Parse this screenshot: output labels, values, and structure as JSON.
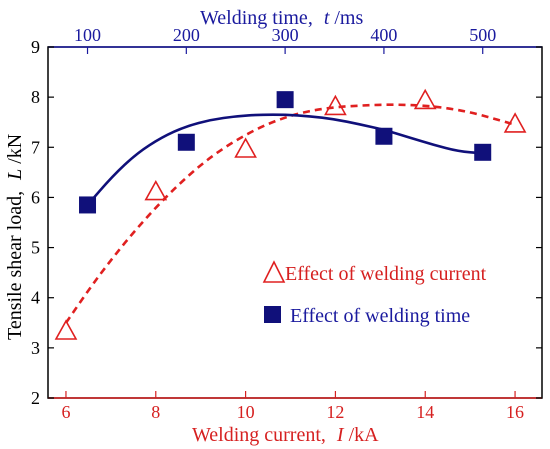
{
  "chart_data": {
    "type": "scatter",
    "x_bottom": {
      "label_prefix": "Welding current,",
      "label_var": "I",
      "label_unit": "/kA",
      "ticks": [
        6,
        8,
        10,
        12,
        14,
        16
      ],
      "range": [
        5.6,
        16.6
      ]
    },
    "x_top": {
      "label_prefix": "Welding time,",
      "label_var": "t",
      "label_unit": "/ms",
      "ticks": [
        100,
        200,
        300,
        400,
        500
      ],
      "range": [
        60,
        560
      ]
    },
    "y": {
      "label_prefix": "Tensile shear load,",
      "label_var": "L",
      "label_unit": "/kN",
      "ticks": [
        2,
        3,
        4,
        5,
        6,
        7,
        8,
        9
      ],
      "range": [
        2,
        9
      ]
    },
    "series": [
      {
        "name": "Effect of welding current",
        "axis": "bottom",
        "marker": "triangle",
        "color": "#e02020",
        "line_style": "dashed",
        "x": [
          6.0,
          8.0,
          10.0,
          12.0,
          14.0,
          16.0
        ],
        "y": [
          3.32,
          6.1,
          6.95,
          7.8,
          7.92,
          7.45
        ],
        "fit_x": [
          6.0,
          6.5,
          7.0,
          7.5,
          8.0,
          8.5,
          9.0,
          9.5,
          10.0,
          10.5,
          11.0,
          11.5,
          12.0,
          12.5,
          13.0,
          13.5,
          14.0,
          14.5,
          15.0,
          15.5,
          16.0
        ],
        "fit_y": [
          3.5,
          4.15,
          4.75,
          5.3,
          5.8,
          6.25,
          6.65,
          6.98,
          7.25,
          7.47,
          7.63,
          7.74,
          7.8,
          7.83,
          7.85,
          7.85,
          7.83,
          7.78,
          7.7,
          7.58,
          7.45
        ]
      },
      {
        "name": "Effect of welding time",
        "axis": "top",
        "marker": "square",
        "color": "#10107a",
        "line_style": "solid",
        "x": [
          100,
          200,
          300,
          400,
          500
        ],
        "y": [
          5.85,
          7.1,
          7.95,
          7.22,
          6.9
        ],
        "fit_x": [
          100,
          125,
          150,
          175,
          200,
          225,
          250,
          275,
          300,
          325,
          350,
          375,
          400,
          425,
          450,
          475,
          500
        ],
        "fit_y": [
          5.85,
          6.42,
          6.88,
          7.2,
          7.42,
          7.55,
          7.62,
          7.65,
          7.65,
          7.62,
          7.56,
          7.46,
          7.35,
          7.2,
          7.05,
          6.92,
          6.88
        ]
      }
    ],
    "legend_position": "bottom-right",
    "grid": false
  }
}
